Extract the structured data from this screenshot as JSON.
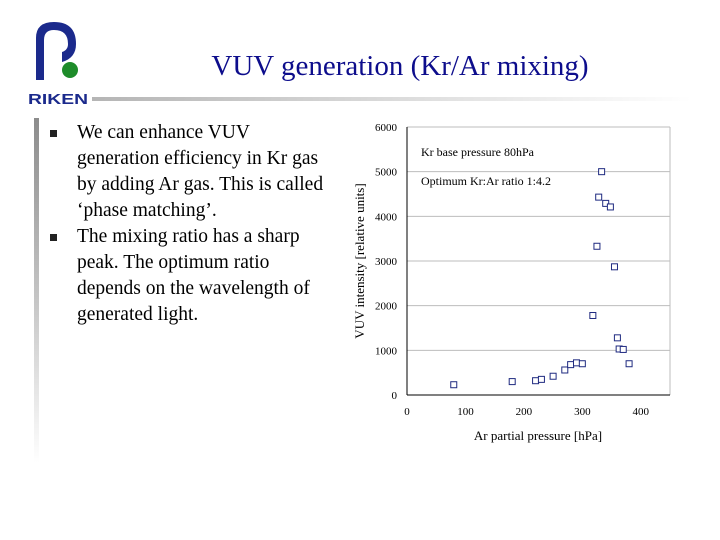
{
  "header": {
    "title": "VUV generation (Kr/Ar mixing)",
    "logo_text": "RIKEN"
  },
  "bullets": [
    "We can enhance VUV generation efficiency in Kr gas by adding Ar gas. This is called ‘phase matching’.",
    "The mixing ratio has a sharp peak. The optimum ratio depends on the wavelength of generated light."
  ],
  "colors": {
    "title": "#0d0d8c",
    "logo_blue": "#1b2a8c",
    "logo_green": "#1e8c2a",
    "marker": "#1f2a80"
  },
  "chart_data": {
    "type": "scatter",
    "xlabel": "Ar partial pressure [hPa]",
    "ylabel": "VUV intensity [relative units]",
    "xlim": [
      0,
      450
    ],
    "ylim": [
      0,
      6000
    ],
    "xticks": [
      0,
      100,
      200,
      300,
      400
    ],
    "yticks": [
      0,
      1000,
      2000,
      3000,
      4000,
      5000,
      6000
    ],
    "grid": "horizontal",
    "annotations": [
      "Kr base pressure 80hPa",
      "Optimum Kr:Ar ratio 1:4.2"
    ],
    "series": [
      {
        "marker": "open-square",
        "points": [
          [
            80,
            230
          ],
          [
            180,
            300
          ],
          [
            220,
            320
          ],
          [
            230,
            350
          ],
          [
            250,
            420
          ],
          [
            270,
            560
          ],
          [
            280,
            680
          ],
          [
            290,
            720
          ],
          [
            300,
            700
          ],
          [
            318,
            1780
          ],
          [
            325,
            3330
          ],
          [
            328,
            4430
          ],
          [
            333,
            5000
          ],
          [
            340,
            4290
          ],
          [
            348,
            4210
          ],
          [
            355,
            2870
          ],
          [
            360,
            1280
          ],
          [
            363,
            1030
          ],
          [
            370,
            1020
          ],
          [
            380,
            700
          ]
        ]
      }
    ]
  }
}
